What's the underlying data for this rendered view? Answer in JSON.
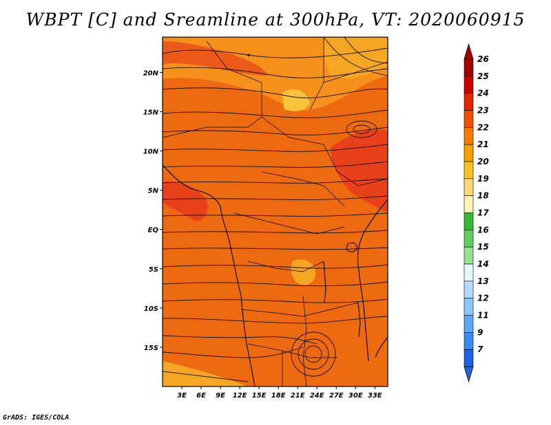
{
  "title": "WBPT [C] and Sreamline at 300hPa, VT: 2020060915",
  "footer": "GrADS: IGES/COLA",
  "map": {
    "lat_range": [
      -20,
      24.5
    ],
    "lon_range": [
      0,
      35
    ],
    "lat_labels": [
      {
        "value": 20,
        "label": "20N"
      },
      {
        "value": 15,
        "label": "15N"
      },
      {
        "value": 10,
        "label": "10N"
      },
      {
        "value": 5,
        "label": "5N"
      },
      {
        "value": 0,
        "label": "EQ"
      },
      {
        "value": -5,
        "label": "5S"
      },
      {
        "value": -10,
        "label": "10S"
      },
      {
        "value": -15,
        "label": "15S"
      }
    ],
    "lon_labels": [
      {
        "value": 3,
        "label": "3E"
      },
      {
        "value": 6,
        "label": "6E"
      },
      {
        "value": 9,
        "label": "9E"
      },
      {
        "value": 12,
        "label": "12E"
      },
      {
        "value": 15,
        "label": "15E"
      },
      {
        "value": 18,
        "label": "18E"
      },
      {
        "value": 21,
        "label": "21E"
      },
      {
        "value": 24,
        "label": "24E"
      },
      {
        "value": 27,
        "label": "27E"
      },
      {
        "value": 30,
        "label": "30E"
      },
      {
        "value": 33,
        "label": "33E"
      }
    ]
  },
  "colorbar": {
    "labels": [
      "26",
      "25",
      "24",
      "23",
      "22",
      "21",
      "20",
      "19",
      "18",
      "17",
      "16",
      "15",
      "14",
      "13",
      "12",
      "11",
      "9",
      "7"
    ],
    "colors": [
      "#a50000",
      "#c80000",
      "#e02800",
      "#f05000",
      "#f57a00",
      "#fa9f00",
      "#fbbf28",
      "#fbd878",
      "#fbf3b0",
      "#36b836",
      "#5ecf5e",
      "#96e096",
      "#e6f8ff",
      "#b4dcff",
      "#8cc8ff",
      "#5fa8f5",
      "#3c8cf0",
      "#2162e0"
    ]
  },
  "colors": {
    "field_base": "#ee6a10",
    "warm_patch": "#e8401a",
    "cool_patch": "#f5a623",
    "light_patch": "#f9c43c"
  }
}
